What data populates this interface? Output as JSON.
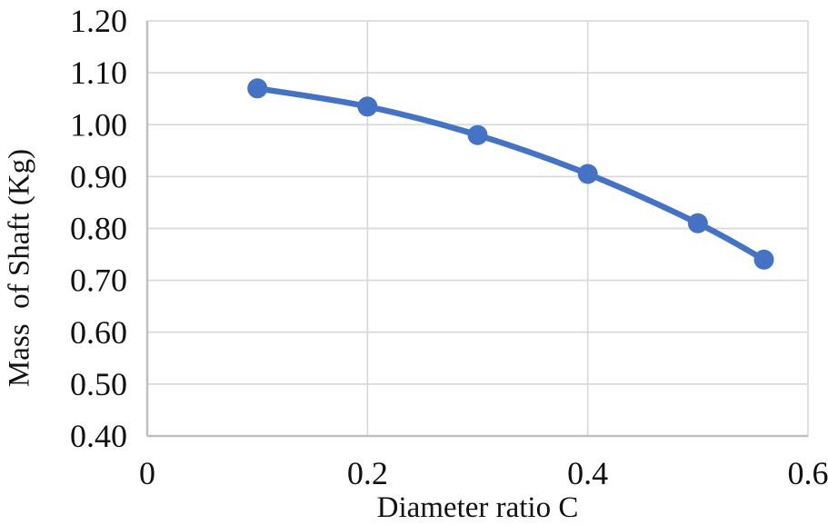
{
  "chart_data": {
    "type": "line",
    "xlabel": "Diameter ratio C",
    "ylabel": "Mass  of Shaft (Kg)",
    "x": [
      0.1,
      0.2,
      0.3,
      0.4,
      0.5,
      0.56
    ],
    "y": [
      1.07,
      1.035,
      0.98,
      0.905,
      0.81,
      0.74
    ],
    "xlim": [
      0,
      0.6
    ],
    "ylim": [
      0.4,
      1.2
    ],
    "xticks": [
      0,
      0.2,
      0.4,
      0.6
    ],
    "xtick_labels": [
      "0",
      "0.2",
      "0.4",
      "0.6"
    ],
    "yticks": [
      1.2,
      1.1,
      1.0,
      0.9,
      0.8,
      0.7,
      0.6,
      0.5,
      0.4
    ],
    "ytick_labels": [
      "1.20",
      "1.10",
      "1.00",
      "0.90",
      "0.80",
      "0.70",
      "0.60",
      "0.50",
      "0.40"
    ],
    "grid": true,
    "legend": "none",
    "line_smooth": true,
    "marker": "circle",
    "colors": {
      "line": "#4472C4",
      "marker": "#4472C4",
      "gridline": "#D9D9D9",
      "axis_line": "#BFBFBF",
      "text": "#111111",
      "background": "#FFFFFF"
    }
  }
}
